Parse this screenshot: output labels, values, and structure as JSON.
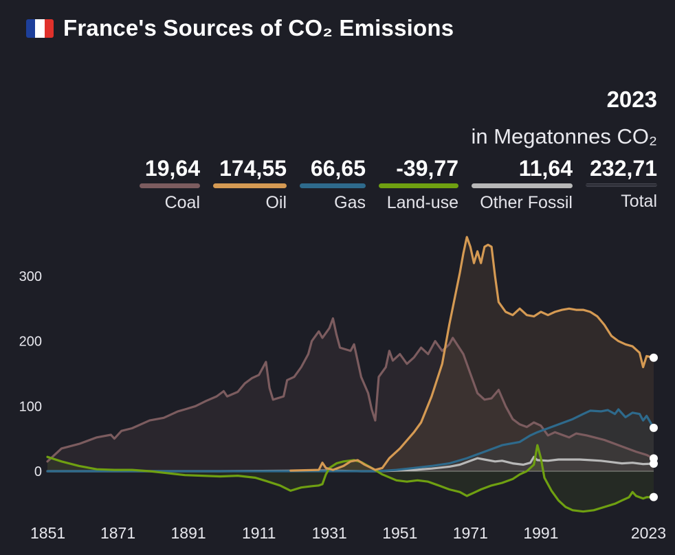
{
  "header": {
    "title": "France's Sources of CO₂ Emissions",
    "flag_colors": [
      "#1d3f9a",
      "#ffffff",
      "#e0312b"
    ]
  },
  "summary": {
    "year": "2023",
    "unit": "in Megatonnes CO₂",
    "items": [
      {
        "label": "Coal",
        "value": "19,64",
        "color": "#7c5c5f"
      },
      {
        "label": "Oil",
        "value": "174,55",
        "color": "#d59a53"
      },
      {
        "label": "Gas",
        "value": "66,65",
        "color": "#2e6a8c"
      },
      {
        "label": "Land-use",
        "value": "-39,77",
        "color": "#6fa011"
      },
      {
        "label": "Other Fossil",
        "value": "11,64",
        "color": "#b8b8b8"
      },
      {
        "label": "Total",
        "value": "232,71",
        "color": "#4a4b55"
      }
    ]
  },
  "chart_data": {
    "type": "line",
    "title": "France's Sources of CO₂ Emissions",
    "xlabel": "",
    "ylabel": "",
    "xlim": [
      1851,
      2023
    ],
    "ylim": [
      -65,
      370
    ],
    "y_ticks": [
      0,
      100,
      200,
      300
    ],
    "x_ticks": [
      1851,
      1871,
      1891,
      1911,
      1931,
      1951,
      1971,
      1991,
      2023
    ],
    "series": [
      {
        "name": "Coal",
        "color": "#7c5c5f",
        "end_value": 19.64,
        "points": [
          [
            1851,
            15
          ],
          [
            1855,
            35
          ],
          [
            1860,
            42
          ],
          [
            1865,
            52
          ],
          [
            1869,
            56
          ],
          [
            1870,
            50
          ],
          [
            1872,
            62
          ],
          [
            1875,
            66
          ],
          [
            1880,
            78
          ],
          [
            1884,
            82
          ],
          [
            1888,
            92
          ],
          [
            1890,
            95
          ],
          [
            1893,
            100
          ],
          [
            1896,
            108
          ],
          [
            1899,
            115
          ],
          [
            1901,
            123
          ],
          [
            1902,
            115
          ],
          [
            1905,
            122
          ],
          [
            1907,
            135
          ],
          [
            1909,
            143
          ],
          [
            1911,
            148
          ],
          [
            1913,
            168
          ],
          [
            1914,
            128
          ],
          [
            1915,
            110
          ],
          [
            1918,
            115
          ],
          [
            1919,
            140
          ],
          [
            1921,
            145
          ],
          [
            1923,
            160
          ],
          [
            1925,
            180
          ],
          [
            1926,
            200
          ],
          [
            1928,
            215
          ],
          [
            1929,
            205
          ],
          [
            1931,
            220
          ],
          [
            1932,
            235
          ],
          [
            1933,
            210
          ],
          [
            1934,
            190
          ],
          [
            1937,
            185
          ],
          [
            1938,
            195
          ],
          [
            1940,
            145
          ],
          [
            1942,
            120
          ],
          [
            1943,
            95
          ],
          [
            1944,
            78
          ],
          [
            1945,
            145
          ],
          [
            1947,
            160
          ],
          [
            1948,
            185
          ],
          [
            1949,
            170
          ],
          [
            1951,
            180
          ],
          [
            1953,
            165
          ],
          [
            1955,
            175
          ],
          [
            1957,
            190
          ],
          [
            1959,
            180
          ],
          [
            1961,
            200
          ],
          [
            1963,
            185
          ],
          [
            1965,
            195
          ],
          [
            1966,
            205
          ],
          [
            1969,
            180
          ],
          [
            1971,
            150
          ],
          [
            1973,
            120
          ],
          [
            1975,
            110
          ],
          [
            1977,
            112
          ],
          [
            1979,
            125
          ],
          [
            1981,
            100
          ],
          [
            1983,
            80
          ],
          [
            1985,
            72
          ],
          [
            1987,
            68
          ],
          [
            1989,
            75
          ],
          [
            1991,
            70
          ],
          [
            1993,
            55
          ],
          [
            1995,
            60
          ],
          [
            1999,
            52
          ],
          [
            2001,
            58
          ],
          [
            2004,
            55
          ],
          [
            2009,
            48
          ],
          [
            2014,
            38
          ],
          [
            2018,
            30
          ],
          [
            2021,
            25
          ],
          [
            2023,
            19.64
          ]
        ]
      },
      {
        "name": "Oil",
        "color": "#d59a53",
        "end_value": 174.55,
        "points": [
          [
            1920,
            1
          ],
          [
            1928,
            2
          ],
          [
            1929,
            13
          ],
          [
            1930,
            5
          ],
          [
            1932,
            2
          ],
          [
            1935,
            8
          ],
          [
            1937,
            15
          ],
          [
            1939,
            17
          ],
          [
            1941,
            10
          ],
          [
            1944,
            2
          ],
          [
            1946,
            5
          ],
          [
            1948,
            20
          ],
          [
            1951,
            35
          ],
          [
            1955,
            60
          ],
          [
            1957,
            75
          ],
          [
            1960,
            115
          ],
          [
            1963,
            165
          ],
          [
            1965,
            225
          ],
          [
            1968,
            305
          ],
          [
            1969,
            335
          ],
          [
            1970,
            360
          ],
          [
            1971,
            345
          ],
          [
            1972,
            320
          ],
          [
            1973,
            338
          ],
          [
            1974,
            320
          ],
          [
            1975,
            345
          ],
          [
            1976,
            348
          ],
          [
            1977,
            345
          ],
          [
            1978,
            300
          ],
          [
            1979,
            260
          ],
          [
            1981,
            245
          ],
          [
            1983,
            240
          ],
          [
            1985,
            250
          ],
          [
            1987,
            240
          ],
          [
            1989,
            238
          ],
          [
            1991,
            245
          ],
          [
            1993,
            240
          ],
          [
            1995,
            245
          ],
          [
            1997,
            248
          ],
          [
            1999,
            250
          ],
          [
            2001,
            248
          ],
          [
            2003,
            248
          ],
          [
            2005,
            245
          ],
          [
            2007,
            238
          ],
          [
            2009,
            225
          ],
          [
            2011,
            208
          ],
          [
            2013,
            200
          ],
          [
            2015,
            195
          ],
          [
            2017,
            192
          ],
          [
            2019,
            182
          ],
          [
            2020,
            160
          ],
          [
            2021,
            177
          ],
          [
            2023,
            174.55
          ]
        ]
      },
      {
        "name": "Gas",
        "color": "#2e6a8c",
        "end_value": 66.65,
        "points": [
          [
            1851,
            0
          ],
          [
            1900,
            0
          ],
          [
            1945,
            0
          ],
          [
            1950,
            2
          ],
          [
            1955,
            5
          ],
          [
            1960,
            8
          ],
          [
            1965,
            12
          ],
          [
            1970,
            20
          ],
          [
            1972,
            24
          ],
          [
            1975,
            30
          ],
          [
            1980,
            40
          ],
          [
            1985,
            45
          ],
          [
            1988,
            55
          ],
          [
            1990,
            60
          ],
          [
            1995,
            70
          ],
          [
            2000,
            80
          ],
          [
            2003,
            88
          ],
          [
            2005,
            93
          ],
          [
            2008,
            92
          ],
          [
            2010,
            94
          ],
          [
            2012,
            88
          ],
          [
            2013,
            95
          ],
          [
            2015,
            83
          ],
          [
            2017,
            90
          ],
          [
            2019,
            88
          ],
          [
            2020,
            78
          ],
          [
            2021,
            85
          ],
          [
            2023,
            66.65
          ]
        ]
      },
      {
        "name": "Land-use",
        "color": "#6fa011",
        "end_value": -39.77,
        "points": [
          [
            1851,
            22
          ],
          [
            1855,
            15
          ],
          [
            1860,
            8
          ],
          [
            1865,
            3
          ],
          [
            1870,
            2
          ],
          [
            1875,
            2
          ],
          [
            1880,
            0
          ],
          [
            1885,
            -3
          ],
          [
            1890,
            -6
          ],
          [
            1895,
            -7
          ],
          [
            1900,
            -8
          ],
          [
            1905,
            -7
          ],
          [
            1910,
            -10
          ],
          [
            1913,
            -15
          ],
          [
            1917,
            -22
          ],
          [
            1920,
            -30
          ],
          [
            1923,
            -25
          ],
          [
            1926,
            -23
          ],
          [
            1928,
            -22
          ],
          [
            1929,
            -20
          ],
          [
            1930,
            -5
          ],
          [
            1931,
            5
          ],
          [
            1933,
            12
          ],
          [
            1935,
            15
          ],
          [
            1938,
            17
          ],
          [
            1940,
            14
          ],
          [
            1943,
            5
          ],
          [
            1946,
            -5
          ],
          [
            1950,
            -14
          ],
          [
            1953,
            -16
          ],
          [
            1956,
            -14
          ],
          [
            1959,
            -16
          ],
          [
            1962,
            -22
          ],
          [
            1965,
            -28
          ],
          [
            1968,
            -32
          ],
          [
            1970,
            -38
          ],
          [
            1972,
            -33
          ],
          [
            1974,
            -28
          ],
          [
            1977,
            -22
          ],
          [
            1980,
            -18
          ],
          [
            1983,
            -12
          ],
          [
            1985,
            -5
          ],
          [
            1987,
            0
          ],
          [
            1989,
            10
          ],
          [
            1990,
            40
          ],
          [
            1991,
            20
          ],
          [
            1992,
            -10
          ],
          [
            1994,
            -30
          ],
          [
            1996,
            -45
          ],
          [
            1998,
            -55
          ],
          [
            2000,
            -60
          ],
          [
            2003,
            -62
          ],
          [
            2006,
            -60
          ],
          [
            2009,
            -55
          ],
          [
            2012,
            -50
          ],
          [
            2014,
            -45
          ],
          [
            2016,
            -40
          ],
          [
            2017,
            -32
          ],
          [
            2018,
            -38
          ],
          [
            2020,
            -42
          ],
          [
            2021,
            -40
          ],
          [
            2023,
            -39.77
          ]
        ]
      },
      {
        "name": "Other Fossil",
        "color": "#b8b8b8",
        "end_value": 11.64,
        "points": [
          [
            1851,
            0
          ],
          [
            1900,
            0
          ],
          [
            1930,
            1
          ],
          [
            1940,
            0
          ],
          [
            1945,
            0
          ],
          [
            1950,
            1
          ],
          [
            1955,
            2
          ],
          [
            1960,
            4
          ],
          [
            1965,
            7
          ],
          [
            1968,
            10
          ],
          [
            1970,
            14
          ],
          [
            1973,
            20
          ],
          [
            1975,
            18
          ],
          [
            1978,
            15
          ],
          [
            1980,
            16
          ],
          [
            1983,
            12
          ],
          [
            1986,
            10
          ],
          [
            1988,
            13
          ],
          [
            1989,
            22
          ],
          [
            1990,
            17
          ],
          [
            1993,
            16
          ],
          [
            1996,
            18
          ],
          [
            1999,
            18
          ],
          [
            2002,
            18
          ],
          [
            2005,
            17
          ],
          [
            2008,
            16
          ],
          [
            2011,
            14
          ],
          [
            2014,
            12
          ],
          [
            2017,
            13
          ],
          [
            2020,
            11
          ],
          [
            2023,
            11.64
          ]
        ]
      }
    ]
  }
}
